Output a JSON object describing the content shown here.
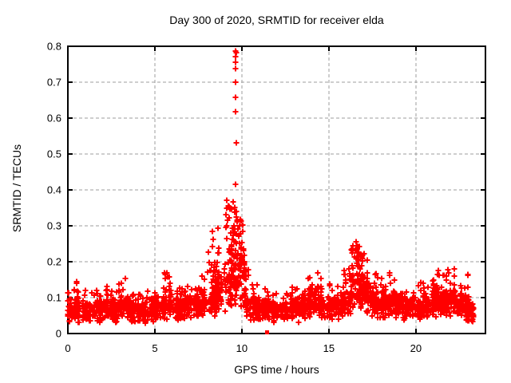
{
  "chart_data": {
    "type": "scatter",
    "title": "Day 300 of 2020, SRMTID for receiver elda",
    "xlabel": "GPS time / hours",
    "ylabel": "SRMTID / TECUs",
    "xlim": [
      0,
      24
    ],
    "ylim": [
      0,
      0.8
    ],
    "xticks": [
      {
        "v": 0,
        "label": "0"
      },
      {
        "v": 5,
        "label": "5"
      },
      {
        "v": 10,
        "label": "10"
      },
      {
        "v": 15,
        "label": "15"
      },
      {
        "v": 20,
        "label": "20"
      }
    ],
    "yticks": [
      {
        "v": 0,
        "label": "0"
      },
      {
        "v": 0.1,
        "label": "0.1"
      },
      {
        "v": 0.2,
        "label": "0.2"
      },
      {
        "v": 0.3,
        "label": "0.3"
      },
      {
        "v": 0.4,
        "label": "0.4"
      },
      {
        "v": 0.5,
        "label": "0.5"
      },
      {
        "v": 0.6,
        "label": "0.6"
      },
      {
        "v": 0.7,
        "label": "0.7"
      },
      {
        "v": 0.8,
        "label": "0.8"
      }
    ],
    "grid": true,
    "legend": "none",
    "marker": {
      "type": "plus",
      "color": "#ff0000",
      "size": 7,
      "stroke": 2
    },
    "axis_color": "#000000",
    "grid_color": "#9e9e9e",
    "background": "#ffffff",
    "seed": 2020300,
    "outlier_square": {
      "x": 11.45,
      "y": 0.003,
      "marker": "filled-square",
      "color": "#ff0000",
      "size": 5
    },
    "notable_points": [
      [
        9.63,
        0.787
      ],
      [
        9.66,
        0.782
      ],
      [
        9.62,
        0.771
      ],
      [
        9.64,
        0.755
      ],
      [
        9.65,
        0.737
      ],
      [
        9.64,
        0.701
      ],
      [
        9.62,
        0.657
      ],
      [
        9.65,
        0.617
      ],
      [
        9.66,
        0.532
      ],
      [
        9.64,
        0.415
      ],
      [
        9.12,
        0.372
      ],
      [
        9.15,
        0.348
      ],
      [
        9.1,
        0.332
      ],
      [
        9.18,
        0.315
      ],
      [
        9.13,
        0.3
      ],
      [
        9.58,
        0.352
      ],
      [
        9.61,
        0.338
      ],
      [
        9.67,
        0.324
      ],
      [
        9.71,
        0.312
      ],
      [
        9.55,
        0.3
      ],
      [
        9.76,
        0.292
      ],
      [
        9.52,
        0.282
      ],
      [
        9.81,
        0.272
      ],
      [
        9.47,
        0.262
      ],
      [
        9.86,
        0.3
      ],
      [
        9.88,
        0.252
      ],
      [
        9.42,
        0.242
      ],
      [
        9.93,
        0.318
      ],
      [
        9.97,
        0.236
      ],
      [
        9.38,
        0.225
      ],
      [
        10.04,
        0.285
      ],
      [
        10.08,
        0.232
      ],
      [
        8.32,
        0.285
      ],
      [
        8.35,
        0.262
      ],
      [
        8.3,
        0.242
      ],
      [
        16.57,
        0.256
      ],
      [
        16.62,
        0.244
      ],
      [
        16.52,
        0.233
      ],
      [
        16.66,
        0.224
      ],
      [
        16.47,
        0.214
      ],
      [
        16.71,
        0.206
      ],
      [
        16.59,
        0.196
      ],
      [
        16.64,
        0.188
      ],
      [
        21.86,
        0.178
      ],
      [
        21.9,
        0.168
      ],
      [
        14.35,
        0.168
      ],
      [
        18.48,
        0.168
      ],
      [
        5.7,
        0.168
      ],
      [
        5.73,
        0.158
      ],
      [
        23.0,
        0.163
      ]
    ],
    "band_bins": [
      [
        0.0,
        0.5,
        55,
        0.02,
        0.1,
        0.13,
        0.06
      ],
      [
        0.5,
        1.0,
        55,
        0.025,
        0.11,
        0.15,
        0.07
      ],
      [
        1.0,
        1.5,
        50,
        0.028,
        0.1,
        0.12,
        0.05
      ],
      [
        1.5,
        2.0,
        50,
        0.025,
        0.1,
        0.13,
        0.05
      ],
      [
        2.0,
        2.5,
        52,
        0.03,
        0.11,
        0.135,
        0.05
      ],
      [
        2.5,
        3.0,
        52,
        0.025,
        0.11,
        0.14,
        0.05
      ],
      [
        3.0,
        3.5,
        52,
        0.03,
        0.115,
        0.155,
        0.06
      ],
      [
        3.5,
        4.0,
        50,
        0.028,
        0.1,
        0.125,
        0.04
      ],
      [
        4.0,
        4.5,
        50,
        0.025,
        0.105,
        0.13,
        0.05
      ],
      [
        4.5,
        5.0,
        50,
        0.03,
        0.11,
        0.13,
        0.05
      ],
      [
        5.0,
        5.5,
        52,
        0.03,
        0.115,
        0.14,
        0.06
      ],
      [
        5.5,
        6.0,
        56,
        0.035,
        0.13,
        0.17,
        0.1
      ],
      [
        6.0,
        6.5,
        50,
        0.03,
        0.11,
        0.13,
        0.05
      ],
      [
        6.5,
        7.0,
        50,
        0.035,
        0.115,
        0.14,
        0.05
      ],
      [
        7.0,
        7.5,
        52,
        0.04,
        0.12,
        0.15,
        0.06
      ],
      [
        7.5,
        8.0,
        54,
        0.04,
        0.13,
        0.165,
        0.08
      ],
      [
        8.0,
        8.5,
        58,
        0.045,
        0.15,
        0.24,
        0.14
      ],
      [
        8.5,
        9.0,
        60,
        0.05,
        0.17,
        0.3,
        0.16
      ],
      [
        9.0,
        9.5,
        72,
        0.055,
        0.22,
        0.37,
        0.2
      ],
      [
        9.5,
        10.25,
        95,
        0.06,
        0.25,
        0.35,
        0.18
      ],
      [
        10.25,
        10.75,
        40,
        0.035,
        0.13,
        0.22,
        0.1
      ],
      [
        10.75,
        11.25,
        48,
        0.03,
        0.11,
        0.14,
        0.05
      ],
      [
        11.25,
        11.75,
        50,
        0.035,
        0.11,
        0.135,
        0.05
      ],
      [
        11.75,
        12.25,
        50,
        0.03,
        0.1,
        0.125,
        0.04
      ],
      [
        12.25,
        12.75,
        50,
        0.03,
        0.105,
        0.13,
        0.05
      ],
      [
        12.75,
        13.25,
        50,
        0.03,
        0.11,
        0.13,
        0.05
      ],
      [
        13.25,
        13.75,
        52,
        0.035,
        0.115,
        0.14,
        0.06
      ],
      [
        13.75,
        14.25,
        54,
        0.04,
        0.125,
        0.16,
        0.08
      ],
      [
        14.25,
        14.75,
        54,
        0.04,
        0.13,
        0.17,
        0.08
      ],
      [
        14.75,
        15.25,
        50,
        0.035,
        0.115,
        0.14,
        0.05
      ],
      [
        15.25,
        15.75,
        52,
        0.038,
        0.12,
        0.15,
        0.06
      ],
      [
        15.75,
        16.25,
        56,
        0.045,
        0.14,
        0.18,
        0.1
      ],
      [
        16.25,
        16.75,
        64,
        0.06,
        0.2,
        0.26,
        0.16
      ],
      [
        16.75,
        17.25,
        60,
        0.055,
        0.185,
        0.235,
        0.14
      ],
      [
        17.25,
        17.75,
        54,
        0.045,
        0.14,
        0.185,
        0.09
      ],
      [
        17.75,
        18.25,
        52,
        0.04,
        0.125,
        0.16,
        0.07
      ],
      [
        18.25,
        18.75,
        54,
        0.042,
        0.13,
        0.17,
        0.08
      ],
      [
        18.75,
        19.25,
        52,
        0.038,
        0.12,
        0.15,
        0.06
      ],
      [
        19.25,
        19.75,
        50,
        0.032,
        0.11,
        0.135,
        0.05
      ],
      [
        19.75,
        20.25,
        50,
        0.03,
        0.11,
        0.135,
        0.05
      ],
      [
        20.25,
        20.75,
        52,
        0.035,
        0.115,
        0.145,
        0.06
      ],
      [
        20.75,
        21.25,
        52,
        0.04,
        0.125,
        0.155,
        0.07
      ],
      [
        21.25,
        21.75,
        56,
        0.04,
        0.14,
        0.185,
        0.11
      ],
      [
        21.75,
        22.25,
        56,
        0.042,
        0.145,
        0.18,
        0.1
      ],
      [
        22.25,
        22.75,
        52,
        0.035,
        0.125,
        0.16,
        0.07
      ],
      [
        22.75,
        23.05,
        40,
        0.03,
        0.115,
        0.165,
        0.07
      ],
      [
        23.05,
        23.35,
        32,
        0.025,
        0.095,
        0.12,
        0.04
      ]
    ]
  }
}
